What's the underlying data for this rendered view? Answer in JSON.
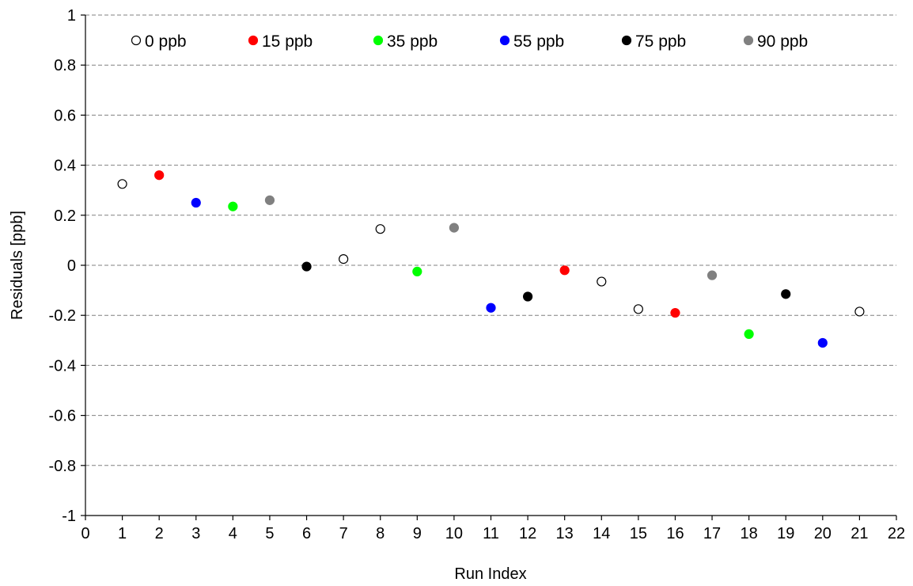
{
  "chart_data": {
    "type": "scatter",
    "title": "",
    "xlabel": "Run Index",
    "ylabel": "Residuals [ppb]",
    "xlim": [
      0,
      22
    ],
    "ylim": [
      -1,
      1
    ],
    "x_ticks": [
      "0",
      "1",
      "2",
      "3",
      "4",
      "5",
      "6",
      "7",
      "8",
      "9",
      "10",
      "11",
      "12",
      "13",
      "14",
      "15",
      "16",
      "17",
      "18",
      "19",
      "20",
      "21",
      "22"
    ],
    "y_ticks": [
      "1",
      "0.8",
      "0.6",
      "0.4",
      "0.2",
      "0",
      "-0.2",
      "-0.4",
      "-0.6",
      "-0.8",
      "-1"
    ],
    "x_tick_values": [
      0,
      1,
      2,
      3,
      4,
      5,
      6,
      7,
      8,
      9,
      10,
      11,
      12,
      13,
      14,
      15,
      16,
      17,
      18,
      19,
      20,
      21,
      22
    ],
    "y_tick_values": [
      1,
      0.8,
      0.6,
      0.4,
      0.2,
      0,
      -0.2,
      -0.4,
      -0.6,
      -0.8,
      -1
    ],
    "grid": "horizontal-dashed",
    "legend_position": "top",
    "series": [
      {
        "name": "0 ppb",
        "color": "#ffffff",
        "stroke": "#000000",
        "points": [
          [
            1,
            0.325
          ],
          [
            7,
            0.025
          ],
          [
            8,
            0.145
          ],
          [
            14,
            -0.065
          ],
          [
            15,
            -0.175
          ],
          [
            21,
            -0.185
          ]
        ]
      },
      {
        "name": "15 ppb",
        "color": "#ff0000",
        "stroke": "#ff0000",
        "points": [
          [
            2,
            0.36
          ],
          [
            13,
            -0.02
          ],
          [
            16,
            -0.19
          ]
        ]
      },
      {
        "name": "35 ppb",
        "color": "#00ff00",
        "stroke": "#00ff00",
        "points": [
          [
            4,
            0.235
          ],
          [
            9,
            -0.025
          ],
          [
            18,
            -0.275
          ]
        ]
      },
      {
        "name": "55 ppb",
        "color": "#0000ff",
        "stroke": "#0000ff",
        "points": [
          [
            3,
            0.25
          ],
          [
            11,
            -0.17
          ],
          [
            20,
            -0.31
          ]
        ]
      },
      {
        "name": "75 ppb",
        "color": "#000000",
        "stroke": "#000000",
        "points": [
          [
            6,
            -0.005
          ],
          [
            12,
            -0.125
          ],
          [
            19,
            -0.115
          ]
        ]
      },
      {
        "name": "90 ppb",
        "color": "#808080",
        "stroke": "#808080",
        "points": [
          [
            5,
            0.26
          ],
          [
            10,
            0.15
          ],
          [
            17,
            -0.04
          ]
        ]
      }
    ]
  }
}
